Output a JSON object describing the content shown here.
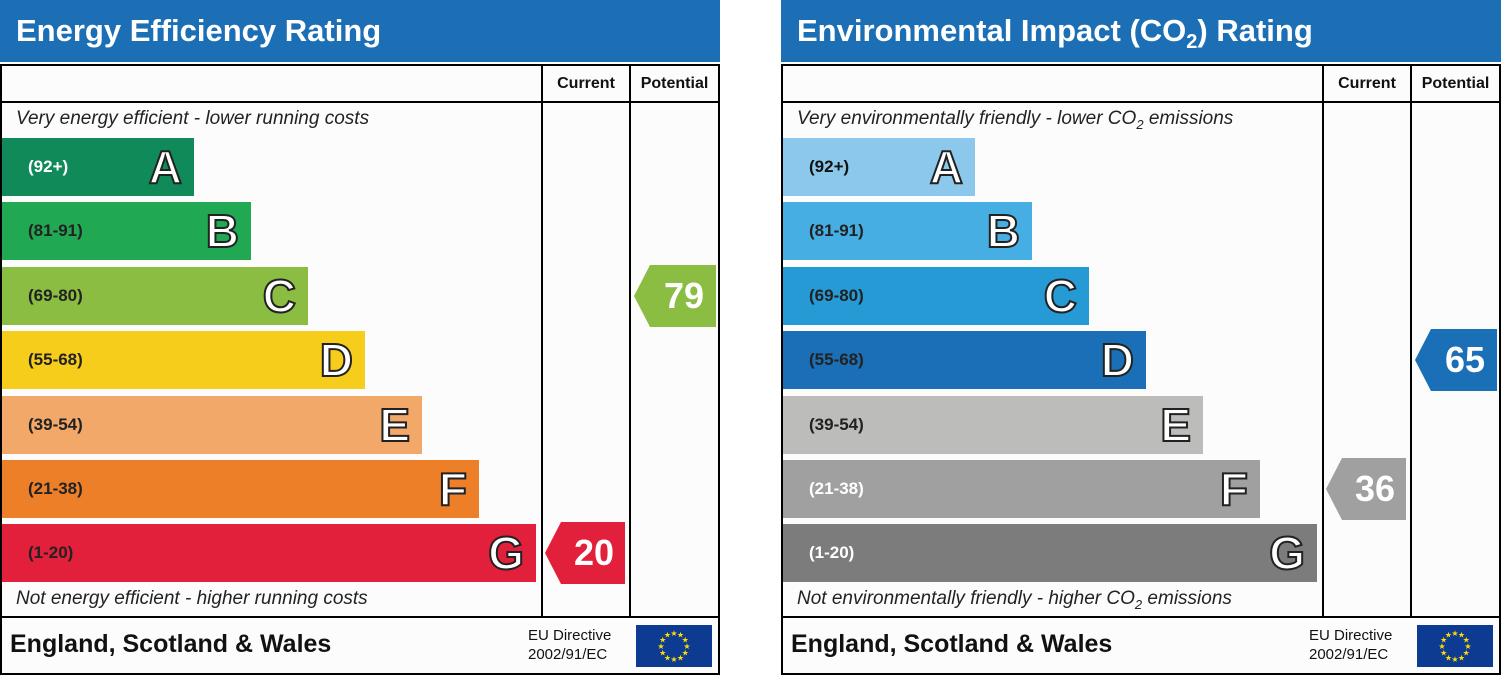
{
  "panels": [
    {
      "title": "Energy Efficiency Rating",
      "title_sub": "",
      "title_suffix": "",
      "header_color": "#1c6fb5",
      "col_current": "Current",
      "col_potential": "Potential",
      "top_note": "Very energy efficient - lower running costs",
      "bottom_note": "Not energy efficient - higher running costs",
      "country": "England, Scotland & Wales",
      "eu_line1": "EU Directive",
      "eu_line2": "2002/91/EC",
      "bands": [
        {
          "letter": "A",
          "range": "(92+)",
          "color": "#0f8a58",
          "text_color": "#ffffff"
        },
        {
          "letter": "B",
          "range": "(81-91)",
          "color": "#21a853",
          "text_color": "#222222"
        },
        {
          "letter": "C",
          "range": "(69-80)",
          "color": "#8bbd42",
          "text_color": "#222222"
        },
        {
          "letter": "D",
          "range": "(55-68)",
          "color": "#f7cd1c",
          "text_color": "#222222"
        },
        {
          "letter": "E",
          "range": "(39-54)",
          "color": "#f2a868",
          "text_color": "#222222"
        },
        {
          "letter": "F",
          "range": "(21-38)",
          "color": "#ee7f29",
          "text_color": "#222222"
        },
        {
          "letter": "G",
          "range": "(1-20)",
          "color": "#e2203b",
          "text_color": "#222222"
        }
      ],
      "current": {
        "value": "20",
        "band": "G",
        "color": "#e2203b"
      },
      "potential": {
        "value": "79",
        "band": "C",
        "color": "#8bbd42"
      }
    },
    {
      "title": "Environmental Impact (CO",
      "title_sub": "2",
      "title_suffix": ") Rating",
      "header_color": "#1c6fb5",
      "col_current": "Current",
      "col_potential": "Potential",
      "top_note_pre": "Very environmentally friendly - lower CO",
      "top_note_sub": "2",
      "top_note_post": " emissions",
      "bottom_note_pre": "Not environmentally friendly - higher CO",
      "bottom_note_sub": "2",
      "bottom_note_post": " emissions",
      "country": "England, Scotland & Wales",
      "eu_line1": "EU Directive",
      "eu_line2": "2002/91/EC",
      "bands": [
        {
          "letter": "A",
          "range": "(92+)",
          "color": "#8cc8ec",
          "text_color": "#111111"
        },
        {
          "letter": "B",
          "range": "(81-91)",
          "color": "#47aee3",
          "text_color": "#222222"
        },
        {
          "letter": "C",
          "range": "(69-80)",
          "color": "#259ad5",
          "text_color": "#222222"
        },
        {
          "letter": "D",
          "range": "(55-68)",
          "color": "#1a6fb6",
          "text_color": "#222222"
        },
        {
          "letter": "E",
          "range": "(39-54)",
          "color": "#bcbcbb",
          "text_color": "#222222"
        },
        {
          "letter": "F",
          "range": "(21-38)",
          "color": "#a0a0a0",
          "text_color": "#ffffff"
        },
        {
          "letter": "G",
          "range": "(1-20)",
          "color": "#7c7c7c",
          "text_color": "#ffffff"
        }
      ],
      "current": {
        "value": "36",
        "band": "F",
        "color": "#a0a0a0"
      },
      "potential": {
        "value": "65",
        "band": "D",
        "color": "#1a6fb6"
      }
    }
  ],
  "chart_data": [
    {
      "type": "bar",
      "title": "Energy Efficiency Rating",
      "categories": [
        "A (92+)",
        "B (81-91)",
        "C (69-80)",
        "D (55-68)",
        "E (39-54)",
        "F (21-38)",
        "G (1-20)"
      ],
      "series": [
        {
          "name": "Current",
          "values": [
            null,
            null,
            null,
            null,
            null,
            null,
            20
          ]
        },
        {
          "name": "Potential",
          "values": [
            null,
            null,
            79,
            null,
            null,
            null,
            null
          ]
        }
      ],
      "current": 20,
      "potential": 79
    },
    {
      "type": "bar",
      "title": "Environmental Impact (CO2) Rating",
      "categories": [
        "A (92+)",
        "B (81-91)",
        "C (69-80)",
        "D (55-68)",
        "E (39-54)",
        "F (21-38)",
        "G (1-20)"
      ],
      "series": [
        {
          "name": "Current",
          "values": [
            null,
            null,
            null,
            null,
            null,
            36,
            null
          ]
        },
        {
          "name": "Potential",
          "values": [
            null,
            null,
            null,
            65,
            null,
            null,
            null
          ]
        }
      ],
      "current": 36,
      "potential": 65
    }
  ]
}
